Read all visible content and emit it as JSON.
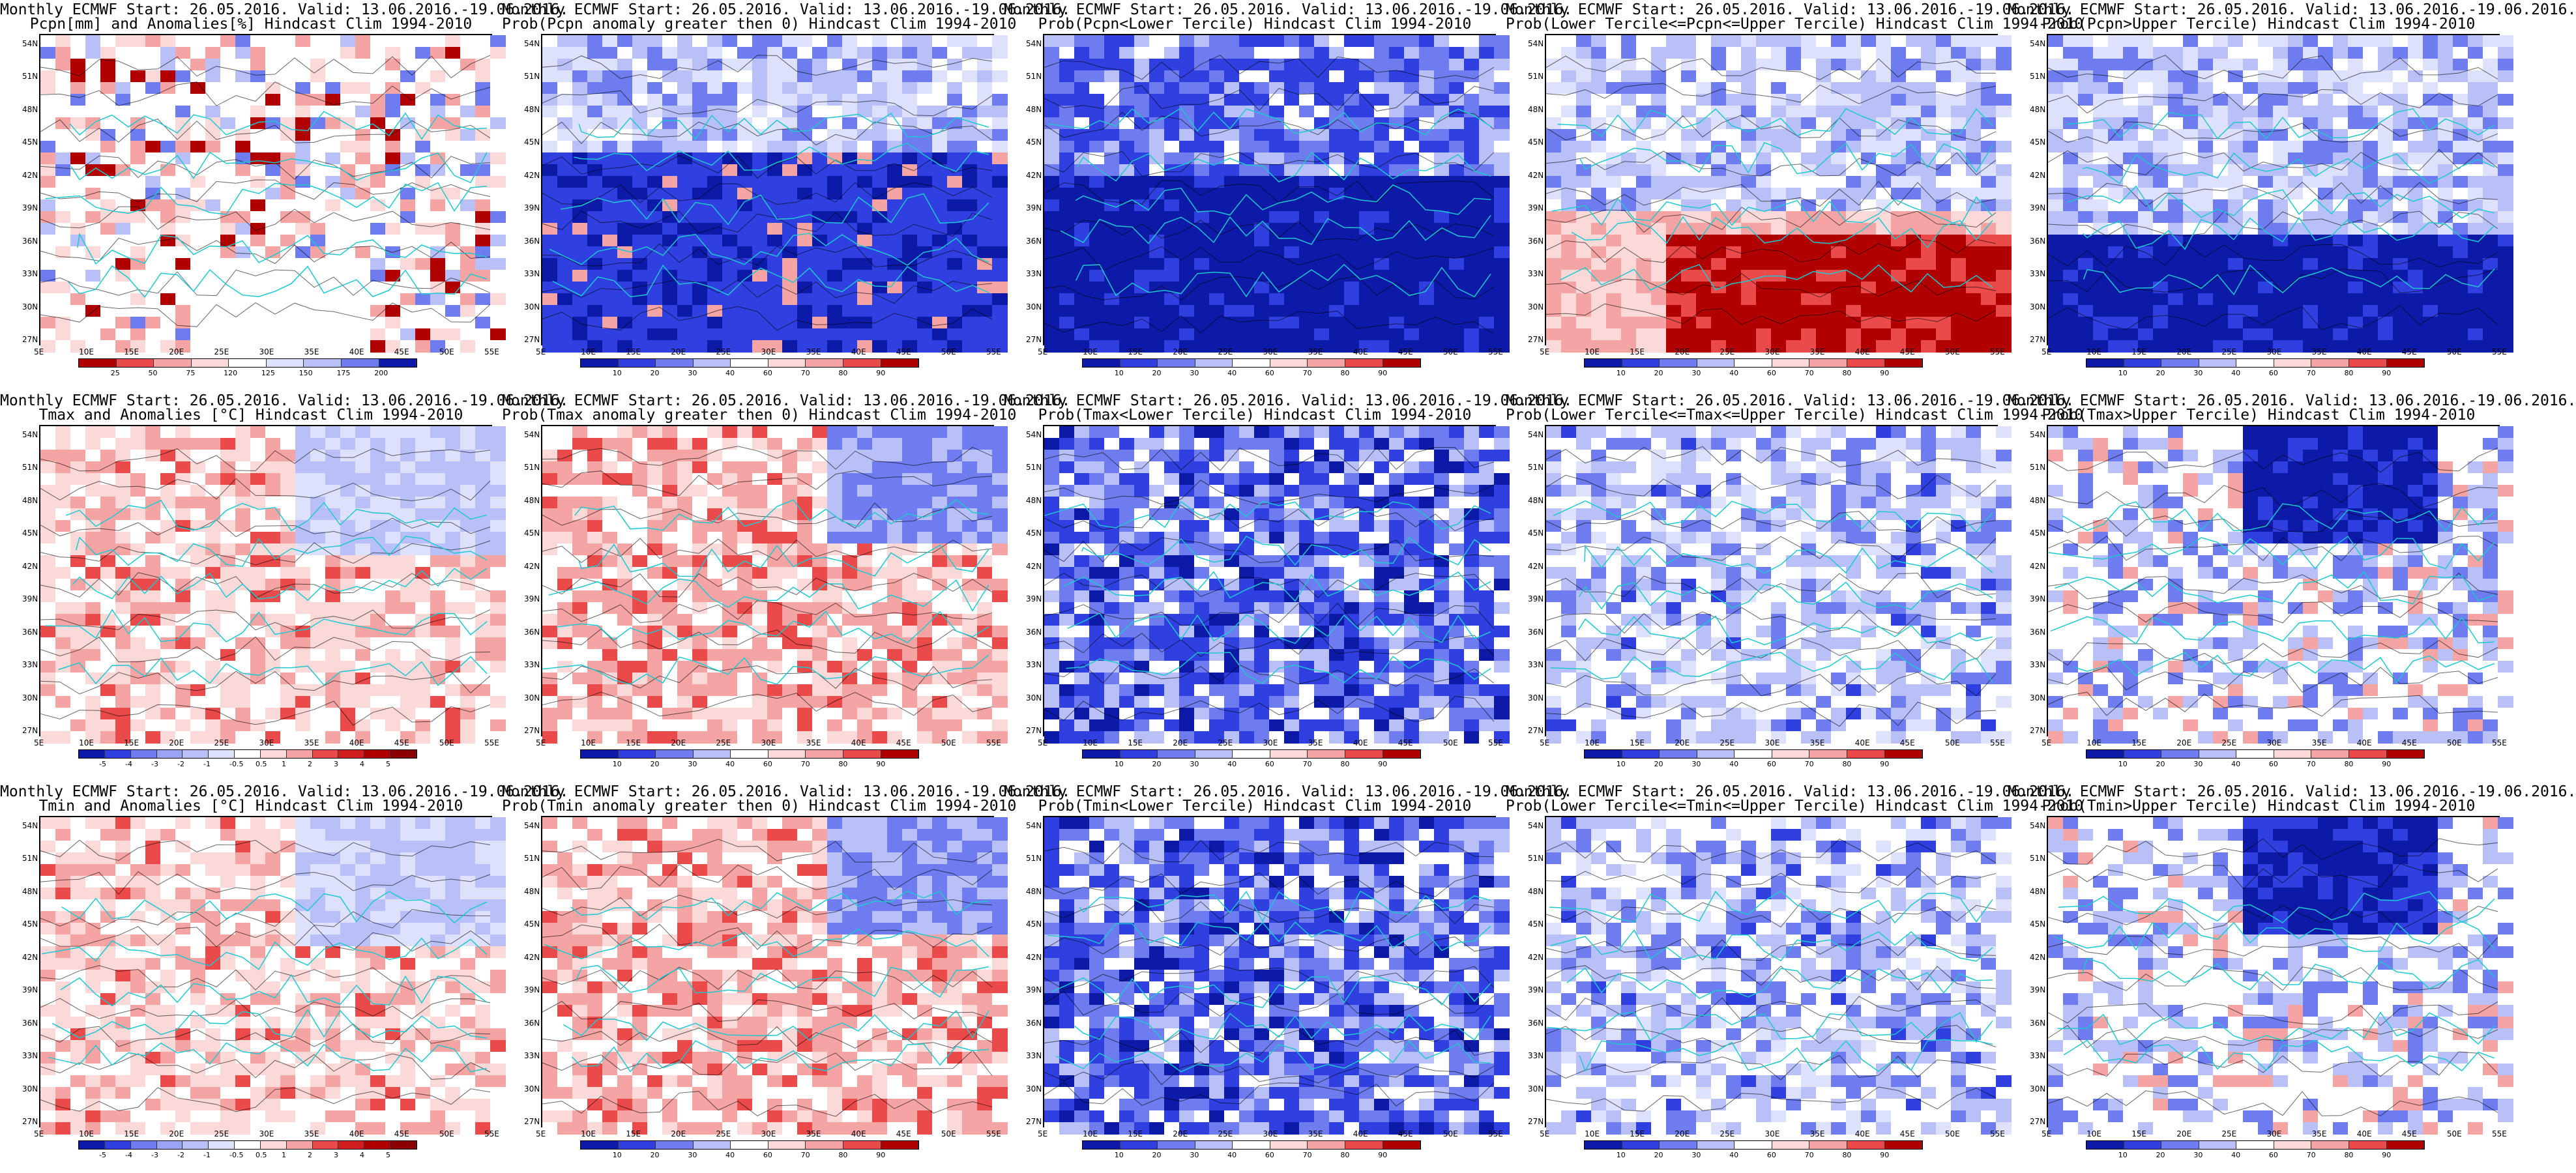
{
  "lat_labels": [
    "54N",
    "51N",
    "48N",
    "45N",
    "42N",
    "39N",
    "36N",
    "33N",
    "30N",
    "27N"
  ],
  "lon_labels": [
    "5E",
    "10E",
    "15E",
    "20E",
    "25E",
    "30E",
    "35E",
    "40E",
    "45E",
    "50E",
    "55E"
  ],
  "colors": {
    "deep_blue": "#0d1aa8",
    "blue": "#2f3fe0",
    "mid_blue": "#6f7cf0",
    "light_blue": "#b9c0f7",
    "pale_blue": "#dde1fb",
    "white": "#ffffff",
    "pale_red": "#fbd9d9",
    "light_red": "#f5a4a4",
    "red": "#ea4a4a",
    "deep_red": "#b10000",
    "coast": "#1ec8d0",
    "contour": "#000000"
  },
  "panels": [
    {
      "id": "p1",
      "title1": "Monthly ECMWF Start: 26.05.2016. Valid: 13.06.2016.-19.06.2016.",
      "title2": "Pcpn[mm] and Anomalies[%] Hindcast Clim 1994-2010",
      "scale": "anom_pcpn",
      "cb_labels": [
        "25",
        "50",
        "75",
        "120",
        "125",
        "150",
        "175",
        "200"
      ],
      "theme": "pcpn_anom"
    },
    {
      "id": "p2",
      "title1": "Monthly ECMWF Start: 26.05.2016. Valid: 13.06.2016.-19.06.2016.",
      "title2": "Prob(Pcpn anomaly greater then 0) Hindcast Clim 1994-2010",
      "scale": "prob",
      "cb_labels": [
        "10",
        "20",
        "30",
        "40",
        "60",
        "70",
        "80",
        "90"
      ],
      "theme": "blue_strong"
    },
    {
      "id": "p3",
      "title1": "Monthly ECMWF Start: 26.05.2016. Valid: 13.06.2016.-19.06.2016.",
      "title2": "Prob(Pcpn<Lower Tercile) Hindcast Clim 1994-2010",
      "scale": "prob",
      "cb_labels": [
        "10",
        "20",
        "30",
        "40",
        "60",
        "70",
        "80",
        "90"
      ],
      "theme": "blue_deep"
    },
    {
      "id": "p4",
      "title1": "Monthly ECMWF Start: 26.05.2016. Valid: 13.06.2016.-19.06.2016.",
      "title2": "Prob(Lower Tercile<=Pcpn<=Upper Tercile) Hindcast Clim 1994-2010",
      "scale": "prob",
      "cb_labels": [
        "10",
        "20",
        "30",
        "40",
        "60",
        "70",
        "80",
        "90"
      ],
      "theme": "red_south"
    },
    {
      "id": "p5",
      "title1": "Monthly ECMWF Start: 26.05.2016. Valid: 13.06.2016.-19.06.2016.",
      "title2": "Prob(Pcpn>Upper Tercile) Hindcast Clim 1994-2010",
      "scale": "prob",
      "cb_labels": [
        "10",
        "20",
        "30",
        "40",
        "60",
        "70",
        "80",
        "90"
      ],
      "theme": "blue_south"
    },
    {
      "id": "p6",
      "title1": "Monthly ECMWF Start: 26.05.2016. Valid: 13.06.2016.-19.06.2016.",
      "title2": "Tmax and Anomalies [°C] Hindcast Clim 1994-2010",
      "scale": "anom_t",
      "cb_labels": [
        "-5",
        "-4",
        "-3",
        "-2",
        "-1",
        "-0.5",
        "0.5",
        "1",
        "2",
        "3",
        "4",
        "5"
      ],
      "theme": "temp_anom"
    },
    {
      "id": "p7",
      "title1": "Monthly ECMWF Start: 26.05.2016. Valid: 13.06.2016.-19.06.2016.",
      "title2": "Prob(Tmax anomaly greater then 0) Hindcast Clim 1994-2010",
      "scale": "prob",
      "cb_labels": [
        "10",
        "20",
        "30",
        "40",
        "60",
        "70",
        "80",
        "90"
      ],
      "theme": "red_prob"
    },
    {
      "id": "p8",
      "title1": "Monthly ECMWF Start: 26.05.2016. Valid: 13.06.2016.-19.06.2016.",
      "title2": "Prob(Tmax<Lower Tercile) Hindcast Clim 1994-2010",
      "scale": "prob",
      "cb_labels": [
        "10",
        "20",
        "30",
        "40",
        "60",
        "70",
        "80",
        "90"
      ],
      "theme": "blue_mix"
    },
    {
      "id": "p9",
      "title1": "Monthly ECMWF Start: 26.05.2016. Valid: 13.06.2016.-19.06.2016.",
      "title2": "Prob(Lower Tercile<=Tmax<=Upper Tercile) Hindcast Clim 1994-2010",
      "scale": "prob",
      "cb_labels": [
        "10",
        "20",
        "30",
        "40",
        "60",
        "70",
        "80",
        "90"
      ],
      "theme": "blue_light"
    },
    {
      "id": "p10",
      "title1": "Monthly ECMWF Start: 26.05.2016. Valid: 13.06.2016.-19.06.2016.",
      "title2": "Prob(Tmax>Upper Tercile) Hindcast Clim 1994-2010",
      "scale": "prob",
      "cb_labels": [
        "10",
        "20",
        "30",
        "40",
        "60",
        "70",
        "80",
        "90"
      ],
      "theme": "blue_ne"
    },
    {
      "id": "p11",
      "title1": "Monthly ECMWF Start: 26.05.2016. Valid: 13.06.2016.-19.06.2016.",
      "title2": "Tmin and Anomalies [°C] Hindcast Clim 1994-2010",
      "scale": "anom_t",
      "cb_labels": [
        "-5",
        "-4",
        "-3",
        "-2",
        "-1",
        "-0.5",
        "0.5",
        "1",
        "2",
        "3",
        "4",
        "5"
      ],
      "theme": "temp_anom2"
    },
    {
      "id": "p12",
      "title1": "Monthly ECMWF Start: 26.05.2016. Valid: 13.06.2016.-19.06.2016.",
      "title2": "Prob(Tmin anomaly greater then 0) Hindcast Clim 1994-2010",
      "scale": "prob",
      "cb_labels": [
        "10",
        "20",
        "30",
        "40",
        "60",
        "70",
        "80",
        "90"
      ],
      "theme": "red_prob2"
    },
    {
      "id": "p13",
      "title1": "Monthly ECMWF Start: 26.05.2016. Valid: 13.06.2016.-19.06.2016.",
      "title2": "Prob(Tmin<Lower Tercile) Hindcast Clim 1994-2010",
      "scale": "prob",
      "cb_labels": [
        "10",
        "20",
        "30",
        "40",
        "60",
        "70",
        "80",
        "90"
      ],
      "theme": "blue_mix2"
    },
    {
      "id": "p14",
      "title1": "Monthly ECMWF Start: 26.05.2016. Valid: 13.06.2016.-19.06.2016.",
      "title2": "Prob(Lower Tercile<=Tmin<=Upper Tercile) Hindcast Clim 1994-2010",
      "scale": "prob",
      "cb_labels": [
        "10",
        "20",
        "30",
        "40",
        "60",
        "70",
        "80",
        "90"
      ],
      "theme": "blue_light2"
    },
    {
      "id": "p15",
      "title1": "Monthly ECMWF Start: 26.05.2016. Valid: 13.06.2016.-19.06.2016.",
      "title2": "Prob(Tmin>Upper Tercile) Hindcast Clim 1994-2010",
      "scale": "prob",
      "cb_labels": [
        "10",
        "20",
        "30",
        "40",
        "60",
        "70",
        "80",
        "90"
      ],
      "theme": "blue_ne2"
    }
  ],
  "colorbar_palettes": {
    "prob": [
      "#0d1aa8",
      "#2f3fe0",
      "#6f7cf0",
      "#b9c0f7",
      "#ffffff",
      "#fbd9d9",
      "#f5a4a4",
      "#ea4a4a",
      "#b10000"
    ],
    "anom_pcpn": [
      "#b10000",
      "#ea4a4a",
      "#f5a4a4",
      "#fbd9d9",
      "#ffffff",
      "#dde1fb",
      "#b9c0f7",
      "#6f7cf0",
      "#0d1aa8"
    ],
    "anom_t": [
      "#0d1aa8",
      "#2f3fe0",
      "#6f7cf0",
      "#9aa3f4",
      "#b9c0f7",
      "#dde1fb",
      "#ffffff",
      "#fbd9d9",
      "#f5a4a4",
      "#ea4a4a",
      "#d21e1e",
      "#b10000",
      "#8a0000"
    ]
  }
}
